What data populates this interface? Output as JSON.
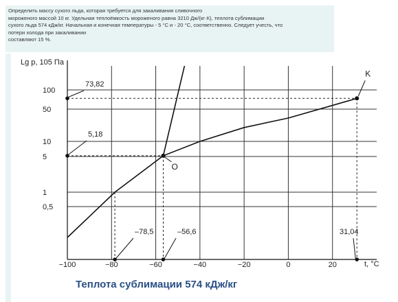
{
  "problem": {
    "lines": [
      "Определить массу сухого льда, которая требуется для закаливания сливочного",
      "мороженого массой 10 кг. Удельная теплоёмкость мороженого равна   3210 Дж/(кг·К), теплота сублимации",
      "сухого льда 574 кДж/кг. Начальная и конечная температуры - 5 °С и - 20 °С, соответственно. Следует учесть, что",
      "потери холода при закаливании",
      "составляют 15 %."
    ]
  },
  "chart_data": {
    "type": "line",
    "title": "",
    "ylabel": "Lg p, 105 Па",
    "xlabel": "t, °С",
    "caption": "Теплота сублимации 574 кДж/кг",
    "xlim": [
      -100,
      31.04
    ],
    "x_ticks": [
      -100,
      -80,
      -60,
      -40,
      -20,
      0,
      20
    ],
    "x_tick_labels": [
      "−100",
      "−80",
      "−60",
      "−40",
      "−20",
      "0",
      "20"
    ],
    "y_scale": "log",
    "y_ticks": [
      100,
      50,
      10,
      5,
      1,
      0.5
    ],
    "y_tick_labels": [
      "100",
      "50",
      "10",
      "5",
      "1",
      "0,5"
    ],
    "grid": "horizontal",
    "series": [
      {
        "name": "",
        "x": [
          -100,
          -78.5,
          -56.6,
          -40,
          -20,
          0,
          31.04
        ],
        "y": [
          0.25,
          1,
          5.18,
          10,
          20,
          32,
          73.82
        ]
      },
      {
        "name": "",
        "x": [
          -56.6,
          -47
        ],
        "y": [
          5.18,
          300
        ]
      }
    ],
    "points": [
      {
        "label": "O",
        "x": -56.6,
        "y": 5.18
      },
      {
        "label": "K",
        "x": 31.04,
        "y": 73.82
      }
    ],
    "annotations": [
      {
        "text": "73,82",
        "x": -100,
        "y": 73.82
      },
      {
        "text": "5,18",
        "x": -100,
        "y": 5.18
      },
      {
        "text": "–78,5",
        "x": -78.5,
        "y": 0.25
      },
      {
        "text": "–56,6",
        "x": -56.6,
        "y": 0.25
      },
      {
        "text": "31,04",
        "x": 31.04,
        "y": 0.25
      }
    ],
    "point_labels": [
      "O",
      "K"
    ],
    "colors": {
      "line": "#111111",
      "grid": "#333333",
      "caption": "#2a4f86"
    }
  }
}
